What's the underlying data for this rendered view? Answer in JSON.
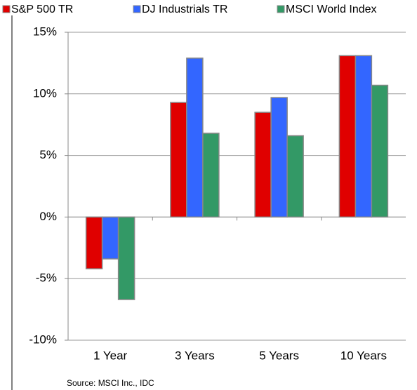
{
  "chart_data": {
    "type": "bar",
    "categories": [
      "1 Year",
      "3 Years",
      "5 Years",
      "10 Years"
    ],
    "series": [
      {
        "name": "S&P 500 TR",
        "color": "#e00000",
        "values": [
          -4.2,
          9.3,
          8.5,
          13.1
        ]
      },
      {
        "name": "DJ Industrials TR",
        "color": "#3366ff",
        "values": [
          -3.4,
          12.9,
          9.7,
          13.1
        ]
      },
      {
        "name": "MSCI World Index",
        "color": "#339966",
        "values": [
          -6.7,
          6.8,
          6.6,
          10.7
        ]
      }
    ],
    "ylim": [
      -10,
      15
    ],
    "yticks": [
      {
        "value": -10,
        "label": "-10%"
      },
      {
        "value": -5,
        "label": "-5%"
      },
      {
        "value": 0,
        "label": "0%"
      },
      {
        "value": 5,
        "label": "5%"
      },
      {
        "value": 10,
        "label": "10%"
      },
      {
        "value": 15,
        "label": "15%"
      }
    ],
    "grid": true,
    "legend": "top",
    "source": "Source:  MSCI Inc., IDC"
  }
}
